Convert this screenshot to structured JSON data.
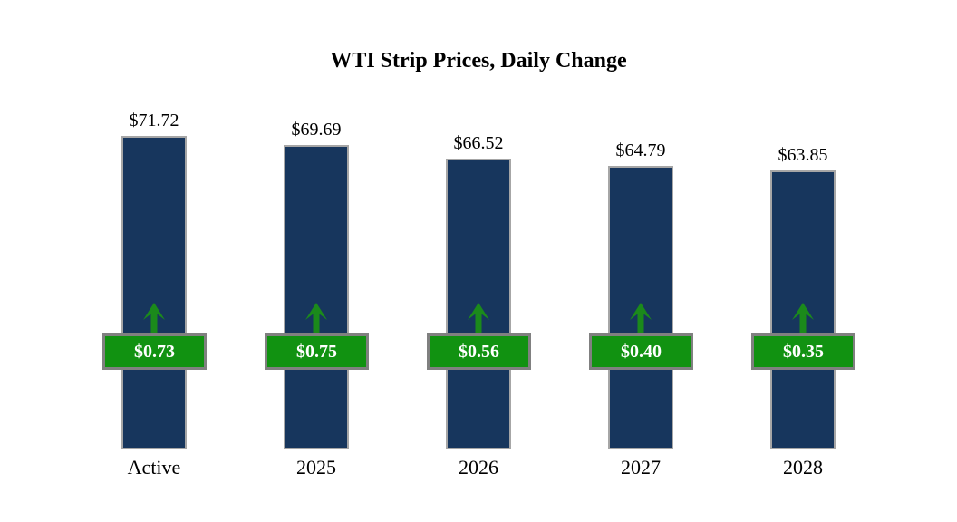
{
  "chart_data": {
    "type": "bar",
    "title": "WTI Strip Prices, Daily Change",
    "categories": [
      "Active",
      "2025",
      "2026",
      "2027",
      "2028"
    ],
    "series": [
      {
        "name": "strip_price",
        "values": [
          71.72,
          69.69,
          66.52,
          64.79,
          63.85
        ],
        "labels": [
          "$71.72",
          "$69.69",
          "$66.52",
          "$64.79",
          "$63.85"
        ]
      },
      {
        "name": "daily_change",
        "values": [
          0.73,
          0.75,
          0.56,
          0.4,
          0.35
        ],
        "labels": [
          "$0.73",
          "$0.75",
          "$0.56",
          "$0.40",
          "$0.35"
        ]
      }
    ],
    "ylim": [
      0,
      71.72
    ],
    "grid": false,
    "legend_position": "none",
    "change_direction": "up"
  },
  "colors": {
    "background": "#FFFFFF",
    "bar_fill": "#17365D",
    "bar_border": "#A6A6A6",
    "badge_fill": "#119211",
    "badge_border": "#808080",
    "badge_text": "#FFFFFF",
    "arrow": "#1B8A1B",
    "title_text": "#000000",
    "label_text": "#000000"
  },
  "icons": {
    "up_arrow": "up-arrow-icon"
  }
}
